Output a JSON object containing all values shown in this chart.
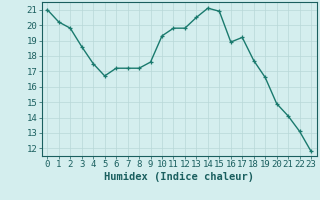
{
  "x": [
    0,
    1,
    2,
    3,
    4,
    5,
    6,
    7,
    8,
    9,
    10,
    11,
    12,
    13,
    14,
    15,
    16,
    17,
    18,
    19,
    20,
    21,
    22,
    23
  ],
  "y": [
    21.0,
    20.2,
    19.8,
    18.6,
    17.5,
    16.7,
    17.2,
    17.2,
    17.2,
    17.6,
    19.3,
    19.8,
    19.8,
    20.5,
    21.1,
    20.9,
    18.9,
    19.2,
    17.7,
    16.6,
    14.9,
    14.1,
    13.1,
    11.8
  ],
  "line_color": "#1a7a6e",
  "marker": "+",
  "marker_color": "#1a7a6e",
  "bg_color": "#d4eeee",
  "grid_color": "#b8d8d8",
  "xlabel": "Humidex (Indice chaleur)",
  "xlim": [
    -0.5,
    23.5
  ],
  "ylim": [
    11.5,
    21.5
  ],
  "yticks": [
    12,
    13,
    14,
    15,
    16,
    17,
    18,
    19,
    20,
    21
  ],
  "xticks": [
    0,
    1,
    2,
    3,
    4,
    5,
    6,
    7,
    8,
    9,
    10,
    11,
    12,
    13,
    14,
    15,
    16,
    17,
    18,
    19,
    20,
    21,
    22,
    23
  ],
  "tick_color": "#1a5f5f",
  "label_color": "#1a5f5f",
  "ax_color": "#1a5f5f",
  "tick_fontsize": 6.5,
  "xlabel_fontsize": 7.5,
  "linewidth": 1.0,
  "markersize": 3.5,
  "markeredgewidth": 0.9
}
